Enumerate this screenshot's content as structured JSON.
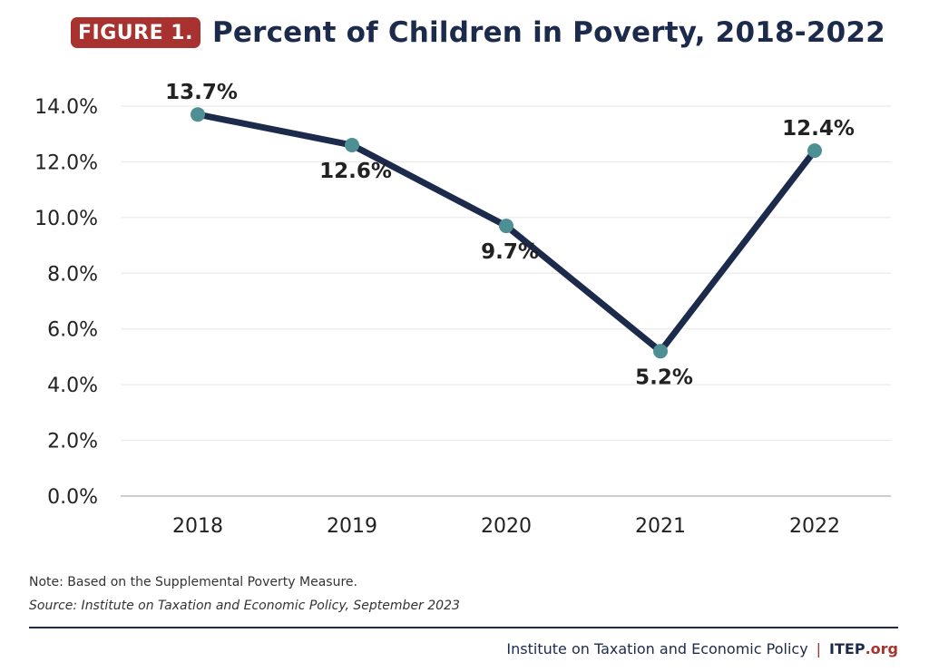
{
  "header": {
    "badge": "FIGURE 1.",
    "title": "Percent of Children in Poverty, 2018-2022"
  },
  "chart_data": {
    "type": "line",
    "title": "Percent of Children in Poverty, 2018-2022",
    "xlabel": "",
    "ylabel": "",
    "categories": [
      "2018",
      "2019",
      "2020",
      "2021",
      "2022"
    ],
    "series": [
      {
        "values": [
          13.7,
          12.6,
          9.7,
          5.2,
          12.4
        ]
      }
    ],
    "data_labels": [
      "13.7%",
      "12.6%",
      "9.7%",
      "5.2%",
      "12.4%"
    ],
    "y_ticks": [
      0,
      2,
      4,
      6,
      8,
      10,
      12,
      14
    ],
    "y_tick_labels": [
      "0.0%",
      "2.0%",
      "4.0%",
      "6.0%",
      "8.0%",
      "10.0%",
      "12.0%",
      "14.0%"
    ],
    "ylim": [
      0,
      14
    ],
    "grid": true,
    "legend": "none",
    "colors": {
      "line": "#1c2b4b",
      "marker": "#4e8f94",
      "grid": "#e6e6e6",
      "axis": "#bdbdbd"
    }
  },
  "footnotes": {
    "note": "Note: Based on the Supplemental Poverty Measure.",
    "source": "Source: Institute on Taxation and Economic Policy, September 2023"
  },
  "footer": {
    "org_name": "Institute on Taxation and Economic Policy",
    "separator": "|",
    "brand": "ITEP",
    "brand_suffix": ".org"
  },
  "colors": {
    "accent": "#a8322f",
    "navy": "#1c2b4b"
  }
}
